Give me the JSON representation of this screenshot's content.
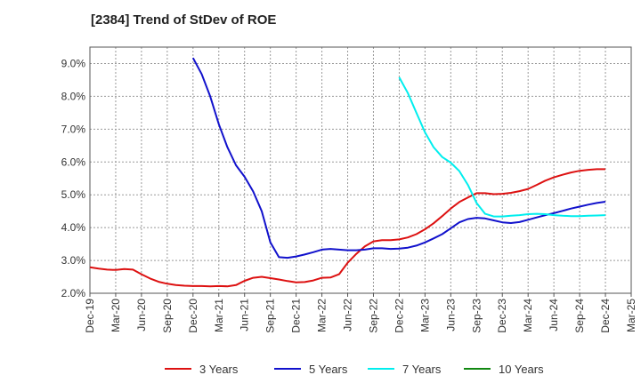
{
  "chart_data": {
    "type": "line",
    "title": "[2384]  Trend of StDev of ROE",
    "xlabel": "",
    "ylabel": "",
    "ylim": [
      2.0,
      9.5
    ],
    "y_ticks": [
      2.0,
      3.0,
      4.0,
      5.0,
      6.0,
      7.0,
      8.0,
      9.0
    ],
    "y_tick_labels": [
      "2.0%",
      "3.0%",
      "4.0%",
      "5.0%",
      "6.0%",
      "7.0%",
      "8.0%",
      "9.0%"
    ],
    "x_tick_labels": [
      "Dec-19",
      "Mar-20",
      "Jun-20",
      "Sep-20",
      "Dec-20",
      "Mar-21",
      "Jun-21",
      "Sep-21",
      "Dec-21",
      "Mar-22",
      "Jun-22",
      "Sep-22",
      "Dec-22",
      "Mar-23",
      "Jun-23",
      "Sep-23",
      "Dec-23",
      "Mar-24",
      "Jun-24",
      "Sep-24",
      "Dec-24",
      "Mar-25"
    ],
    "grid": true,
    "legend_position": "bottom",
    "series": [
      {
        "name": "3 Years",
        "color": "#dd1111",
        "x": [
          "Dec-19",
          "Jan-20",
          "Feb-20",
          "Mar-20",
          "Apr-20",
          "May-20",
          "Jun-20",
          "Jul-20",
          "Aug-20",
          "Sep-20",
          "Oct-20",
          "Nov-20",
          "Dec-20",
          "Jan-21",
          "Feb-21",
          "Mar-21",
          "Apr-21",
          "May-21",
          "Jun-21",
          "Jul-21",
          "Aug-21",
          "Sep-21",
          "Oct-21",
          "Nov-21",
          "Dec-21",
          "Jan-22",
          "Feb-22",
          "Mar-22",
          "Apr-22",
          "May-22",
          "Jun-22",
          "Jul-22",
          "Aug-22",
          "Sep-22",
          "Oct-22",
          "Nov-22",
          "Dec-22",
          "Jan-23",
          "Feb-23",
          "Mar-23",
          "Apr-23",
          "May-23",
          "Jun-23",
          "Jul-23",
          "Aug-23",
          "Sep-23",
          "Oct-23",
          "Nov-23",
          "Dec-23",
          "Jan-24",
          "Feb-24",
          "Mar-24",
          "Apr-24",
          "May-24",
          "Jun-24",
          "Jul-24",
          "Aug-24",
          "Sep-24",
          "Oct-24",
          "Nov-24",
          "Dec-24"
        ],
        "values": [
          2.79,
          2.75,
          2.72,
          2.71,
          2.74,
          2.72,
          2.58,
          2.45,
          2.35,
          2.29,
          2.25,
          2.23,
          2.22,
          2.22,
          2.21,
          2.22,
          2.21,
          2.25,
          2.38,
          2.47,
          2.5,
          2.46,
          2.42,
          2.37,
          2.33,
          2.34,
          2.39,
          2.47,
          2.48,
          2.58,
          2.93,
          3.2,
          3.43,
          3.58,
          3.62,
          3.62,
          3.64,
          3.7,
          3.8,
          3.95,
          4.13,
          4.35,
          4.58,
          4.78,
          4.92,
          5.05,
          5.05,
          5.02,
          5.03,
          5.06,
          5.11,
          5.18,
          5.3,
          5.43,
          5.53,
          5.61,
          5.68,
          5.73,
          5.76,
          5.78,
          5.78
        ]
      },
      {
        "name": "5 Years",
        "color": "#1111cc",
        "x": [
          "Dec-20",
          "Jan-21",
          "Feb-21",
          "Mar-21",
          "Apr-21",
          "May-21",
          "Jun-21",
          "Jul-21",
          "Aug-21",
          "Sep-21",
          "Oct-21",
          "Nov-21",
          "Dec-21",
          "Jan-22",
          "Feb-22",
          "Mar-22",
          "Apr-22",
          "May-22",
          "Jun-22",
          "Jul-22",
          "Aug-22",
          "Sep-22",
          "Oct-22",
          "Nov-22",
          "Dec-22",
          "Jan-23",
          "Feb-23",
          "Mar-23",
          "Apr-23",
          "May-23",
          "Jun-23",
          "Jul-23",
          "Aug-23",
          "Sep-23",
          "Oct-23",
          "Nov-23",
          "Dec-23",
          "Jan-24",
          "Feb-24",
          "Mar-24",
          "Apr-24",
          "May-24",
          "Jun-24",
          "Jul-24",
          "Aug-24",
          "Sep-24",
          "Oct-24",
          "Nov-24",
          "Dec-24"
        ],
        "values": [
          9.17,
          8.68,
          8.0,
          7.15,
          6.45,
          5.9,
          5.55,
          5.1,
          4.5,
          3.55,
          3.1,
          3.08,
          3.12,
          3.18,
          3.25,
          3.33,
          3.35,
          3.33,
          3.31,
          3.31,
          3.33,
          3.37,
          3.37,
          3.35,
          3.36,
          3.39,
          3.45,
          3.55,
          3.67,
          3.8,
          3.98,
          4.16,
          4.26,
          4.3,
          4.28,
          4.22,
          4.16,
          4.14,
          4.17,
          4.24,
          4.31,
          4.38,
          4.44,
          4.51,
          4.58,
          4.64,
          4.7,
          4.75,
          4.79
        ]
      },
      {
        "name": "7 Years",
        "color": "#00eeee",
        "x": [
          "Dec-22",
          "Jan-23",
          "Feb-23",
          "Mar-23",
          "Apr-23",
          "May-23",
          "Jun-23",
          "Jul-23",
          "Aug-23",
          "Sep-23",
          "Oct-23",
          "Nov-23",
          "Dec-23",
          "Jan-24",
          "Feb-24",
          "Mar-24",
          "Apr-24",
          "May-24",
          "Jun-24",
          "Jul-24",
          "Aug-24",
          "Sep-24",
          "Oct-24",
          "Nov-24",
          "Dec-24"
        ],
        "values": [
          8.58,
          8.1,
          7.5,
          6.9,
          6.45,
          6.15,
          5.98,
          5.72,
          5.3,
          4.75,
          4.42,
          4.34,
          4.34,
          4.36,
          4.38,
          4.41,
          4.42,
          4.41,
          4.38,
          4.36,
          4.35,
          4.35,
          4.36,
          4.37,
          4.38
        ]
      },
      {
        "name": "10 Years",
        "color": "#118811",
        "x": [],
        "values": []
      }
    ]
  }
}
